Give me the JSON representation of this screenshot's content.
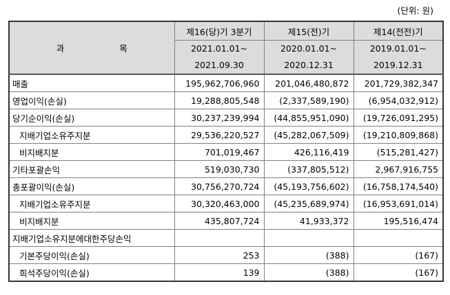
{
  "unit_label": "(단위: 원)",
  "header": {
    "subject": "과 목",
    "periods": [
      {
        "name": "제16(당)기 3분기",
        "from": "2021.01.01~",
        "to": "2021.09.30"
      },
      {
        "name": "제15(전)기",
        "from": "2020.01.01~",
        "to": "2020.12.31"
      },
      {
        "name": "제14(전전)기",
        "from": "2019.01.01~",
        "to": "2019.12.31"
      }
    ]
  },
  "rows": [
    {
      "label": "매출",
      "indent": false,
      "v": [
        "195,962,706,960",
        "201,046,480,872",
        "201,729,382,347"
      ]
    },
    {
      "label": "영업이익(손실)",
      "indent": false,
      "v": [
        "19,288,805,548",
        "(2,337,589,190)",
        "(6,954,032,912)"
      ]
    },
    {
      "label": "당기순이익(손실)",
      "indent": false,
      "v": [
        "30,237,239,994",
        "(44,855,951,090)",
        "(19,726,091,295)"
      ]
    },
    {
      "label": "지배기업소유주지분",
      "indent": true,
      "v": [
        "29,536,220,527",
        "(45,282,067,509)",
        "(19,210,809,868)"
      ]
    },
    {
      "label": "비지배지분",
      "indent": true,
      "v": [
        "701,019,467",
        "426,116,419",
        "(515,281,427)"
      ]
    },
    {
      "label": "기타포괄손익",
      "indent": false,
      "v": [
        "519,030,730",
        "(337,805,512)",
        "2,967,916,755"
      ]
    },
    {
      "label": "총포괄이익(손실)",
      "indent": false,
      "v": [
        "30,756,270,724",
        "(45,193,756,602)",
        "(16,758,174,540)"
      ]
    },
    {
      "label": "지배기업소유주지분",
      "indent": true,
      "v": [
        "30,320,463,000",
        "(45,235,689,974)",
        "(16,953,691,014)"
      ]
    },
    {
      "label": "비지배지분",
      "indent": true,
      "v": [
        "435,807,724",
        "41,933,372",
        "195,516,474"
      ]
    },
    {
      "label": "지배기업소유지분에대한주당손익",
      "indent": false,
      "v": [
        "",
        "",
        ""
      ]
    },
    {
      "label": "기본주당이익(손실)",
      "indent": true,
      "v": [
        "253",
        "(388)",
        "(167)"
      ]
    },
    {
      "label": "희석주당이익(손실)",
      "indent": true,
      "v": [
        "139",
        "(388)",
        "(167)"
      ]
    }
  ]
}
